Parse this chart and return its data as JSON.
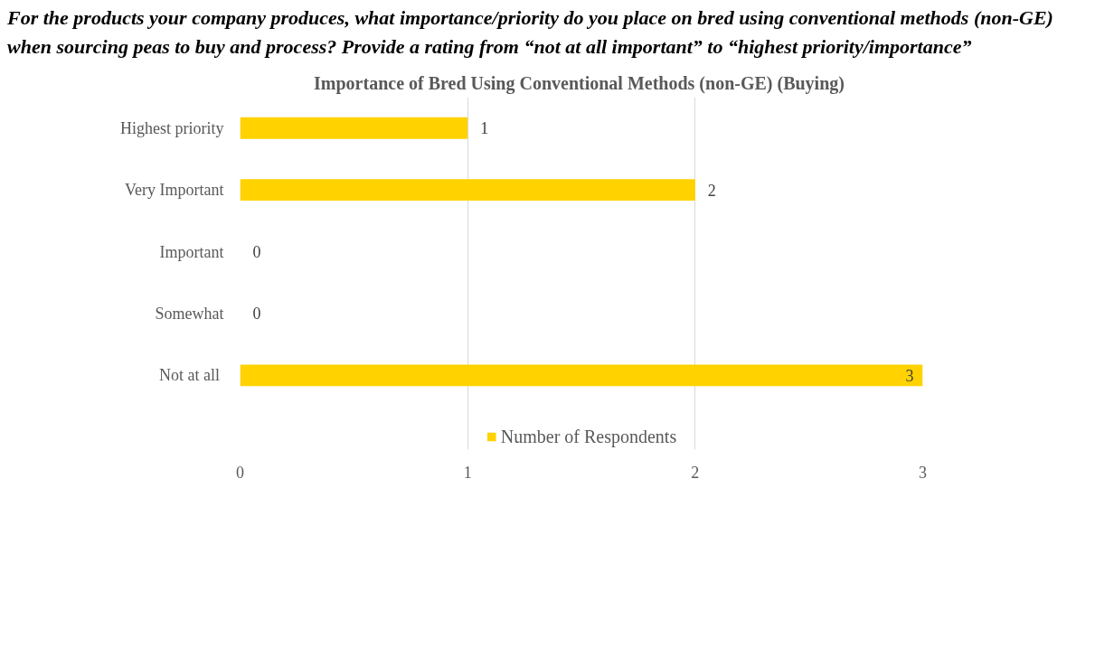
{
  "chart_data": {
    "type": "bar",
    "orientation": "horizontal",
    "title": "For the products your company produces, what importance/priority do you place on bred using conventional methods (non-GE) when sourcing peas to buy and process? Provide a rating from “not at all important” to “highest priority/importance”",
    "subtitle": "Importance of  Bred Using Conventional Methods (non-GE) (Buying)",
    "categories": [
      "Highest priority",
      "Very Important",
      "Important",
      "Somewhat",
      "Not  at all"
    ],
    "series": [
      {
        "name": "Number of Respondents",
        "color": "#ffd200",
        "values": [
          1,
          2,
          0,
          0,
          3
        ]
      }
    ],
    "xlim": [
      0,
      3
    ],
    "xticks": [
      0,
      1,
      2,
      3
    ],
    "grid": "x",
    "legend": "bottom",
    "data_labels": true
  }
}
